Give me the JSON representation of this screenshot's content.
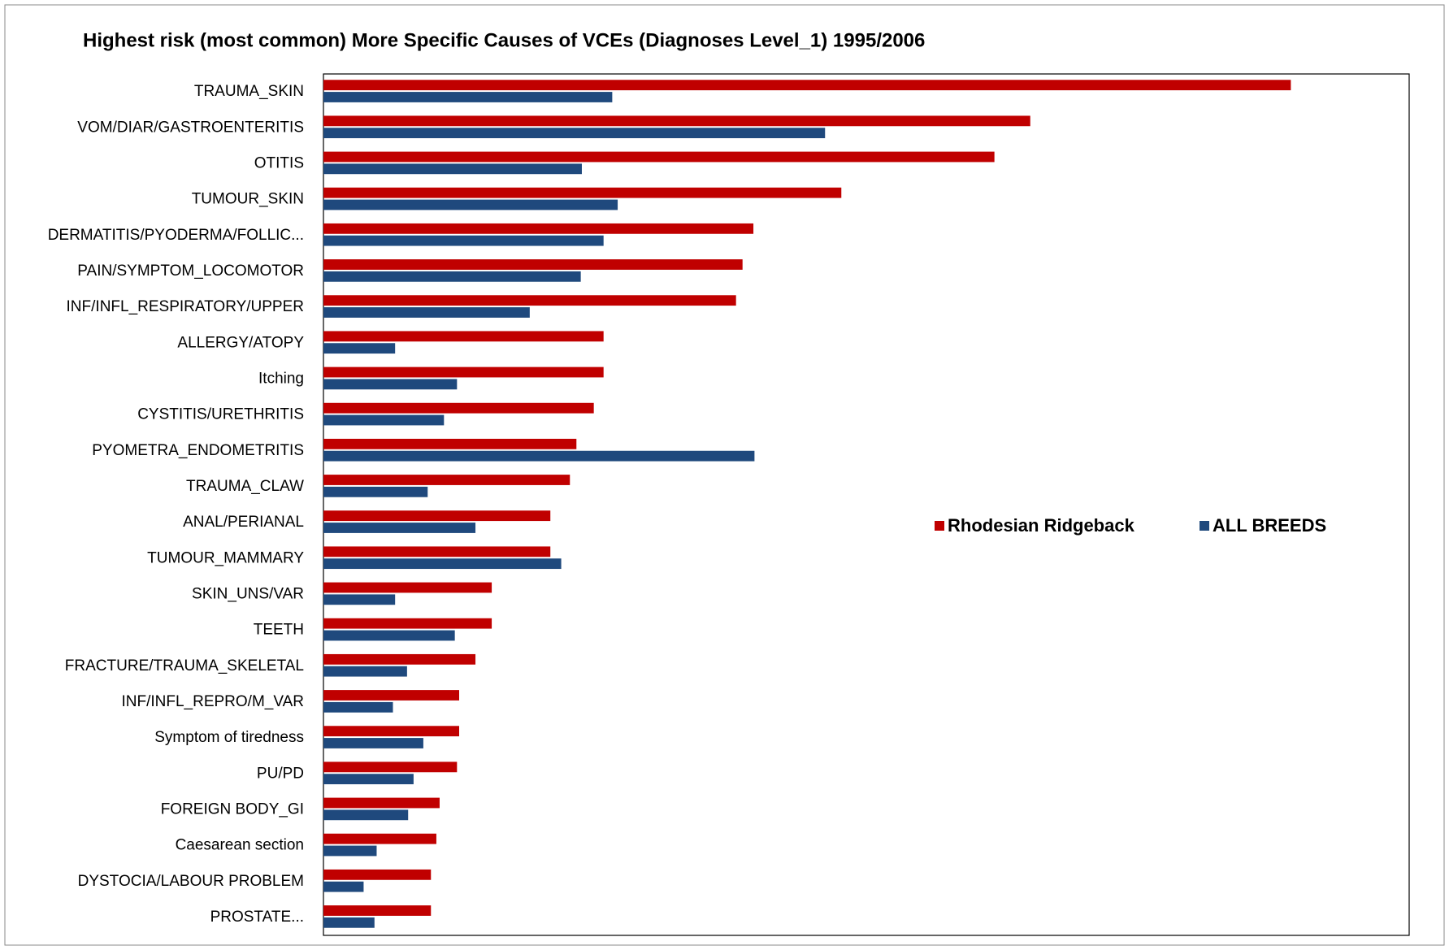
{
  "chart_data": {
    "type": "hbar",
    "title": "Highest risk (most common)  More Specific Causes of VCEs (Diagnoses Level_1) 1995/2006",
    "categories": [
      "TRAUMA_SKIN",
      "VOM/DIAR/GASTROENTERITIS",
      "OTITIS",
      "TUMOUR_SKIN",
      "DERMATITIS/PYODERMA/FOLLIC...",
      "PAIN/SYMPTOM_LOCOMOTOR",
      "INF/INFL_RESPIRATORY/UPPER",
      "ALLERGY/ATOPY",
      "Itching",
      "CYSTITIS/URETHRITIS",
      "PYOMETRA_ENDOMETRITIS",
      "TRAUMA_CLAW",
      "ANAL/PERIANAL",
      "TUMOUR_MAMMARY",
      "SKIN_UNS/VAR",
      "TEETH",
      "FRACTURE/TRAUMA_SKELETAL",
      "INF/INFL_REPRO/M_VAR",
      "Symptom of tiredness",
      "PU/PD",
      "FOREIGN BODY_GI",
      "Caesarean section",
      "DYSTOCIA/LABOUR PROBLEM",
      "PROSTATE..."
    ],
    "series": [
      {
        "name": "Rhodesian Ridgeback",
        "color": "#c00000",
        "values": [
          89.1,
          65.1,
          61.8,
          47.7,
          39.6,
          38.6,
          38.0,
          25.8,
          25.8,
          24.9,
          23.3,
          22.7,
          20.9,
          20.9,
          15.5,
          15.5,
          14.0,
          12.5,
          12.5,
          12.3,
          10.7,
          10.4,
          9.9,
          9.9
        ]
      },
      {
        "name": "ALL BREEDS",
        "color": "#1f497d",
        "values": [
          26.6,
          46.2,
          23.8,
          27.1,
          25.8,
          23.7,
          19.0,
          6.6,
          12.3,
          11.1,
          39.7,
          9.6,
          14.0,
          21.9,
          6.6,
          12.1,
          7.7,
          6.4,
          9.2,
          8.3,
          7.8,
          4.9,
          3.7,
          4.7
        ]
      }
    ],
    "xlim": [
      0,
      100
    ]
  }
}
